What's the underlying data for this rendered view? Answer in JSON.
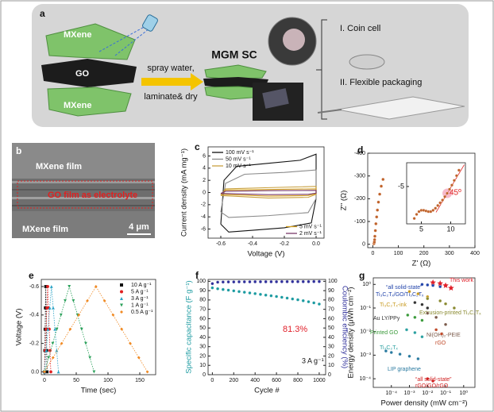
{
  "panel_a": {
    "label": "a",
    "top_layer": "MXene",
    "middle_layer": "GO",
    "bottom_layer": "MXene",
    "step_1": "spray water,",
    "step_2": "laminate& dry",
    "device": "MGM SC",
    "option_1": "I. Coin cell",
    "option_2": "II. Flexible packaging"
  },
  "panel_b": {
    "label": "b",
    "top_film": "MXene film",
    "electrolyte": "GO film as electrolyte",
    "bottom_film": "MXene film",
    "scale_bar": "4 μm"
  },
  "chart_data": [
    {
      "panel": "c",
      "type": "line",
      "xlabel": "Voltage (V)",
      "ylabel": "Current density (mA mg⁻¹)",
      "xlim": [
        -0.68,
        0.05
      ],
      "xticks": [
        -0.6,
        -0.4,
        -0.2,
        {
          "value": 0,
          "label": "0.0"
        }
      ],
      "ylim": [
        -7.5,
        7.5
      ],
      "yticks": [
        -6,
        -4,
        -2,
        0,
        2,
        4,
        6
      ],
      "legend": "upper left",
      "series": [
        {
          "name": "100 mV s⁻¹",
          "color": "#111111",
          "x": [
            -0.6,
            -0.58,
            -0.5,
            -0.3,
            -0.1,
            0,
            0,
            -0.03,
            -0.2,
            -0.4,
            -0.55,
            -0.6
          ],
          "values": [
            -5.2,
            2,
            4.3,
            4.8,
            5.3,
            6.3,
            -1,
            -5,
            -5.8,
            -6.2,
            -6.5,
            -5.2
          ]
        },
        {
          "name": "50 mV s⁻¹",
          "color": "#8a8a8a",
          "x": [
            -0.6,
            -0.57,
            -0.45,
            -0.2,
            0,
            0,
            -0.05,
            -0.3,
            -0.55,
            -0.6
          ],
          "values": [
            -3.2,
            1.5,
            3,
            3.3,
            3.7,
            -1,
            -3.3,
            -3.8,
            -4.1,
            -3.2
          ]
        },
        {
          "name": "10 mV s⁻¹",
          "color": "#c8a040",
          "x": [
            -0.6,
            -0.57,
            -0.3,
            0,
            0,
            -0.05,
            -0.3,
            -0.6
          ],
          "values": [
            -0.5,
            0.6,
            0.8,
            1.0,
            -0.3,
            -0.8,
            -0.9,
            -0.5
          ]
        },
        {
          "name": "5 mV s⁻¹",
          "color": "#d4a020",
          "legend": "lower right",
          "x": [
            -0.6,
            -0.57,
            -0.3,
            0,
            0,
            -0.05,
            -0.3,
            -0.6
          ],
          "values": [
            -0.3,
            0.4,
            0.5,
            0.6,
            -0.2,
            -0.5,
            -0.6,
            -0.3
          ]
        },
        {
          "name": "2 mV s⁻¹",
          "color": "#7a3a6a",
          "legend": "lower right",
          "x": [
            -0.6,
            -0.57,
            -0.3,
            0,
            0,
            -0.05,
            -0.3,
            -0.6
          ],
          "values": [
            -0.15,
            0.2,
            0.3,
            0.35,
            -0.1,
            -0.3,
            -0.35,
            -0.15
          ]
        }
      ]
    },
    {
      "panel": "d",
      "type": "scatter",
      "xlabel": "Z' (Ω)",
      "ylabel": "Z'' (Ω)",
      "xlim": [
        -20,
        400
      ],
      "xticks": [
        0,
        100,
        200,
        300,
        400
      ],
      "ylim": [
        15,
        -400
      ],
      "yticks": [
        0,
        -100,
        -200,
        -300,
        -400
      ],
      "series": [
        {
          "color": "#c0622a",
          "x": [
            4,
            5,
            6,
            7,
            8,
            10,
            12,
            15,
            18,
            22,
            27,
            33,
            40
          ],
          "values": [
            -2,
            -5,
            -10,
            -20,
            -35,
            -60,
            -90,
            -120,
            -150,
            -185,
            -220,
            -255,
            -285
          ]
        }
      ],
      "inset": {
        "type": "scatter",
        "xlim": [
          2.5,
          12.5
        ],
        "xticks": [
          5,
          10
        ],
        "ylim": [
          0.5,
          -8.5
        ],
        "yticks": [
          -5
        ],
        "annotations": [
          "45º"
        ],
        "series": [
          {
            "color": "#c0622a",
            "x": [
              3.8,
              4.2,
              4.6,
              5.0,
              5.4,
              5.8,
              6.2,
              6.6,
              7.0,
              7.4,
              7.8,
              8.2,
              8.6,
              9.0,
              9.4,
              9.8,
              10.2,
              10.6,
              11.0,
              11.4
            ],
            "values": [
              -0.3,
              -0.9,
              -1.3,
              -1.5,
              -1.5,
              -1.4,
              -1.3,
              -1.3,
              -1.5,
              -1.8,
              -2.2,
              -2.6,
              -3.0,
              -3.5,
              -4.0,
              -4.6,
              -5.2,
              -5.9,
              -6.6,
              -7.4
            ]
          }
        ]
      }
    },
    {
      "panel": "e",
      "type": "line",
      "xlabel": "Time (sec)",
      "ylabel": "Voltage (V)",
      "xlim": [
        -5,
        175
      ],
      "xticks": [
        0,
        50,
        100,
        150
      ],
      "ylim": [
        0.02,
        -0.65
      ],
      "yticks": [
        {
          "value": 0,
          "label": "0.0"
        },
        -0.2,
        -0.4,
        -0.6
      ],
      "legend": "upper right",
      "linestyle": "dotted",
      "series": [
        {
          "name": "10 A g⁻¹",
          "color": "#111111",
          "marker": "square",
          "x": [
            0,
            0.5,
            1,
            1.5,
            2,
            2.5,
            3,
            3.5,
            4
          ],
          "values": [
            0,
            -0.15,
            -0.3,
            -0.45,
            -0.6,
            -0.45,
            -0.3,
            -0.15,
            0
          ]
        },
        {
          "name": "5 A g⁻¹",
          "color": "#e02020",
          "marker": "circle",
          "x": [
            0,
            1.25,
            2.5,
            3.75,
            5,
            6.25,
            7.5,
            8.75,
            10
          ],
          "values": [
            0,
            -0.15,
            -0.3,
            -0.45,
            -0.6,
            -0.45,
            -0.3,
            -0.15,
            0
          ]
        },
        {
          "name": "3 A g⁻¹",
          "color": "#2ba3c6",
          "marker": "triangle",
          "x": [
            0,
            2.75,
            5.5,
            8.25,
            11,
            13.75,
            16.5,
            19.25,
            22
          ],
          "values": [
            0,
            -0.15,
            -0.3,
            -0.45,
            -0.6,
            -0.45,
            -0.3,
            -0.15,
            0
          ]
        },
        {
          "name": "1 A g⁻¹",
          "color": "#2aa05a",
          "marker": "tri-down",
          "x": [
            0,
            6.5,
            13,
            19.5,
            26,
            32.5,
            39,
            45.5,
            52,
            58.5,
            65,
            71.5,
            78
          ],
          "values": [
            0,
            -0.1,
            -0.2,
            -0.3,
            -0.4,
            -0.5,
            -0.6,
            -0.5,
            -0.4,
            -0.3,
            -0.2,
            -0.1,
            0
          ]
        },
        {
          "name": "0.5 A g⁻¹",
          "color": "#f08a24",
          "marker": "diamond",
          "x": [
            0,
            13.5,
            27,
            40.5,
            54,
            67.5,
            81,
            94.5,
            108,
            121.5,
            135,
            148.5,
            162
          ],
          "values": [
            0,
            -0.1,
            -0.2,
            -0.3,
            -0.4,
            -0.5,
            -0.6,
            -0.5,
            -0.4,
            -0.3,
            -0.2,
            -0.1,
            0
          ]
        }
      ]
    },
    {
      "panel": "f",
      "type": "scatter",
      "xlabel": "Cycle #",
      "ylabel": "Specific capacitance (F g⁻¹)",
      "y2label": "Coulombic efficiency (%)",
      "xlim": [
        -40,
        1060
      ],
      "xticks": [
        0,
        200,
        400,
        600,
        800,
        1000
      ],
      "ylim": [
        0,
        102
      ],
      "yticks": [
        0,
        10,
        20,
        30,
        40,
        50,
        60,
        70,
        80,
        90,
        100
      ],
      "y2lim": [
        0,
        102
      ],
      "y2ticks": [
        0,
        10,
        20,
        30,
        40,
        50,
        60,
        70,
        80,
        90,
        100
      ],
      "annotations": [
        "81.3%",
        "3 A g⁻¹"
      ],
      "x": [
        0,
        50,
        100,
        150,
        200,
        250,
        300,
        350,
        400,
        450,
        500,
        550,
        600,
        650,
        700,
        750,
        800,
        850,
        900,
        950,
        1000
      ],
      "series": [
        {
          "color": "#1a9aa0",
          "values": [
            93,
            92,
            91.2,
            90.5,
            89.8,
            89,
            88.3,
            87.5,
            86.8,
            86,
            85.2,
            84.5,
            83.7,
            82.9,
            82,
            81.1,
            80.2,
            79.2,
            78.1,
            76.9,
            75.6
          ]
        },
        {
          "color": "#2e2e9a",
          "axis": "y2",
          "values": [
            97.5,
            99,
            99.2,
            99.3,
            99.3,
            99.4,
            99.4,
            99.4,
            99.5,
            99.5,
            99.5,
            99.5,
            99.5,
            99.6,
            99.6,
            99.6,
            99.6,
            99.6,
            99.6,
            99.7,
            99.7
          ]
        }
      ]
    },
    {
      "panel": "g",
      "type": "scatter",
      "xlabel": "Power density (mW cm⁻²)",
      "ylabel": "Energy density (μWh cm⁻²)",
      "xlog": true,
      "ylog": true,
      "direct_labels": true,
      "xlim": [
        1e-05,
        4.2
      ],
      "xticks": [
        {
          "value": 0.0001,
          "label": "10⁻⁴"
        },
        {
          "value": 0.001,
          "label": "10⁻³"
        },
        {
          "value": 0.01,
          "label": "10⁻²"
        },
        {
          "value": 0.1,
          "label": "10⁻¹"
        },
        {
          "value": 1,
          "label": "10⁰"
        }
      ],
      "ylim": [
        4.3e-05,
        1.9
      ],
      "yticks": [
        {
          "value": 0.0001,
          "label": "10⁻⁴"
        },
        {
          "value": 0.001,
          "label": "10⁻³"
        },
        {
          "value": 0.01,
          "label": "10⁻²"
        },
        {
          "value": 0.1,
          "label": "10⁻¹"
        },
        {
          "value": 1,
          "label": "10⁰"
        }
      ],
      "annotations": [
        "“all solid-state”",
        "“all solid-state”"
      ],
      "series": [
        {
          "name": "This work",
          "color": "#e0202a",
          "marker": "star",
          "x": [
            0.02,
            0.05,
            0.1,
            0.2
          ],
          "values": [
            1.2,
            1.1,
            0.9,
            0.7
          ]
        },
        {
          "name": "Ti₃C₂Tₓ/GO/Ti₃C₂Tₓ",
          "color": "#2244aa",
          "x": [
            0.005,
            0.01,
            0.02,
            0.05
          ],
          "values": [
            1.0,
            0.95,
            0.9,
            0.8
          ]
        },
        {
          "name": "Ti₃C₂Tₓ-ink",
          "color": "#c89a20",
          "x": [
            0.001,
            0.003,
            0.01
          ],
          "values": [
            0.5,
            0.4,
            0.3
          ]
        },
        {
          "name": "Au LY/PPy",
          "color": "#333333",
          "x": [
            0.002,
            0.005,
            0.01
          ],
          "values": [
            0.17,
            0.14,
            0.1
          ]
        },
        {
          "name": "Extrusion-printed Ti₃C₂Tₓ",
          "color": "#8a8a30",
          "x": [
            0.01,
            0.05,
            0.1,
            0.3
          ],
          "values": [
            0.25,
            0.2,
            0.15,
            0.1
          ]
        },
        {
          "name": "Printed GO",
          "color": "#3a9a3a",
          "x": [
            0.0008,
            0.002,
            0.005
          ],
          "values": [
            0.05,
            0.04,
            0.03
          ]
        },
        {
          "name": "Ni(OH)₂-PEIE",
          "color": "#7a5a4a",
          "x": [
            0.01,
            0.03,
            0.1
          ],
          "values": [
            0.06,
            0.04,
            0.02
          ]
        },
        {
          "name": "rGO",
          "color": "#c04a2a",
          "x": [
            0.03,
            0.06
          ],
          "values": [
            0.012,
            0.008
          ]
        },
        {
          "name": "Ti₃C₂Tₓ",
          "color": "#2aa0a0",
          "x": [
            0.0007,
            0.002,
            0.005
          ],
          "values": [
            0.012,
            0.009,
            0.006
          ]
        },
        {
          "name": "LIP graphene",
          "color": "#2a7aa0",
          "x": [
            5e-05,
            0.0001,
            0.0003,
            0.001,
            0.003
          ],
          "values": [
            0.0015,
            0.0013,
            0.0011,
            0.0009,
            0.0007
          ]
        },
        {
          "name": "rGO/GO/rGO",
          "color": "#d02020",
          "x": [
            0.01,
            0.02
          ],
          "values": [
            0.0001,
            8e-05
          ]
        }
      ]
    }
  ]
}
